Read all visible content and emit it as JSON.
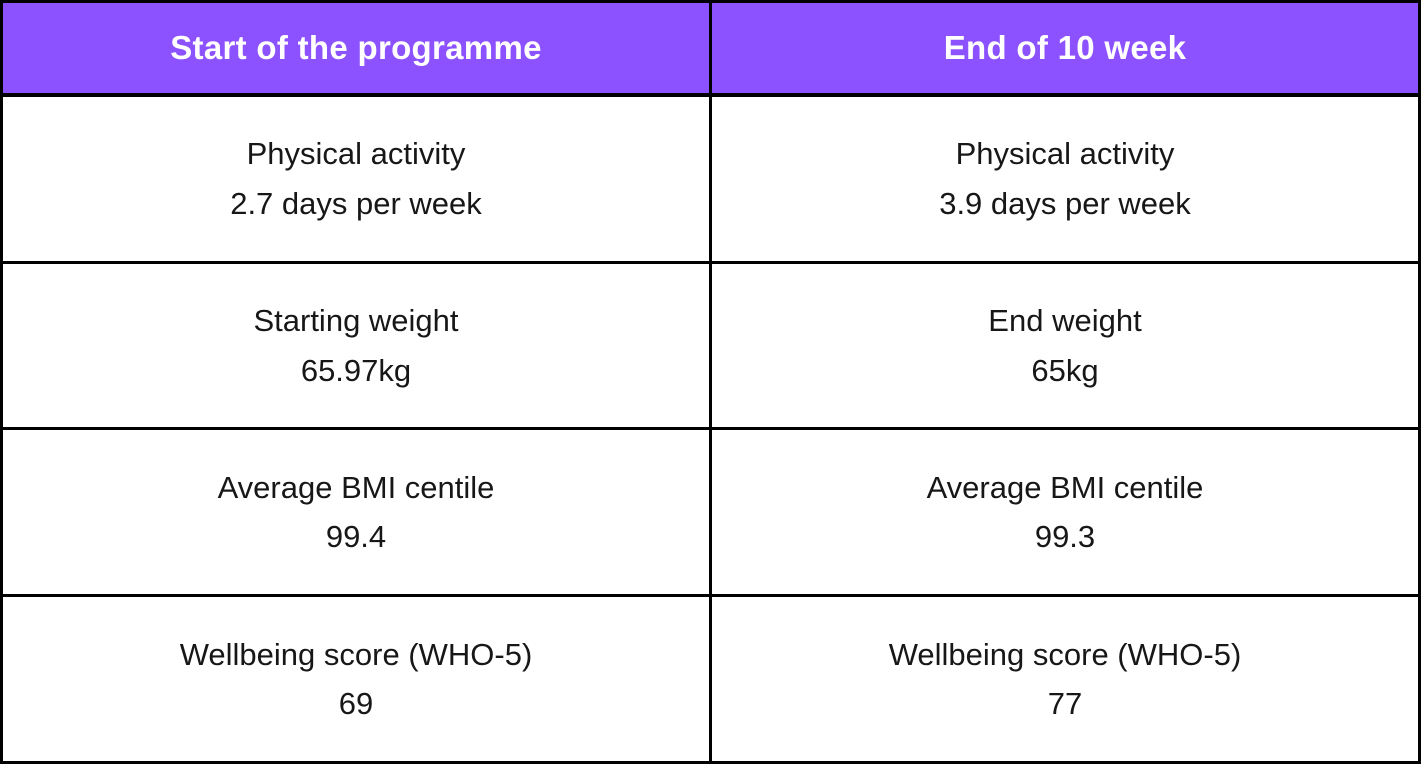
{
  "colors": {
    "header_bg": "#8C52FF",
    "header_text": "#FFFFFF",
    "body_text": "#171717",
    "border": "#000000",
    "background": "#FFFFFF"
  },
  "table": {
    "headers": [
      "Start of the programme",
      "End of 10 week"
    ],
    "rows": [
      [
        {
          "label": "Physical activity",
          "value": "2.7 days per week"
        },
        {
          "label": "Physical activity",
          "value": "3.9 days per week"
        }
      ],
      [
        {
          "label": "Starting weight",
          "value": "65.97kg"
        },
        {
          "label": "End weight",
          "value": "65kg"
        }
      ],
      [
        {
          "label": "Average BMI centile",
          "value": "99.4"
        },
        {
          "label": "Average BMI centile",
          "value": "99.3"
        }
      ],
      [
        {
          "label": "Wellbeing score (WHO-5)",
          "value": "69"
        },
        {
          "label": "Wellbeing score (WHO-5)",
          "value": "77"
        }
      ]
    ]
  },
  "chart_data": {
    "type": "table",
    "columns": [
      "Start of the programme",
      "End of 10 week"
    ],
    "rows": [
      [
        "Physical activity 2.7 days per week",
        "Physical activity 3.9 days per week"
      ],
      [
        "Starting weight 65.97kg",
        "End weight 65kg"
      ],
      [
        "Average BMI centile 99.4",
        "Average BMI centile 99.3"
      ],
      [
        "Wellbeing score (WHO-5) 69",
        "Wellbeing score (WHO-5) 77"
      ]
    ],
    "metrics": [
      {
        "name": "Physical activity (days per week)",
        "start": 2.7,
        "end": 3.9
      },
      {
        "name": "Weight (kg)",
        "start": 65.97,
        "end": 65
      },
      {
        "name": "Average BMI centile",
        "start": 99.4,
        "end": 99.3
      },
      {
        "name": "Wellbeing score (WHO-5)",
        "start": 69,
        "end": 77
      }
    ],
    "title": "",
    "legend_position": "none",
    "grid": true
  }
}
